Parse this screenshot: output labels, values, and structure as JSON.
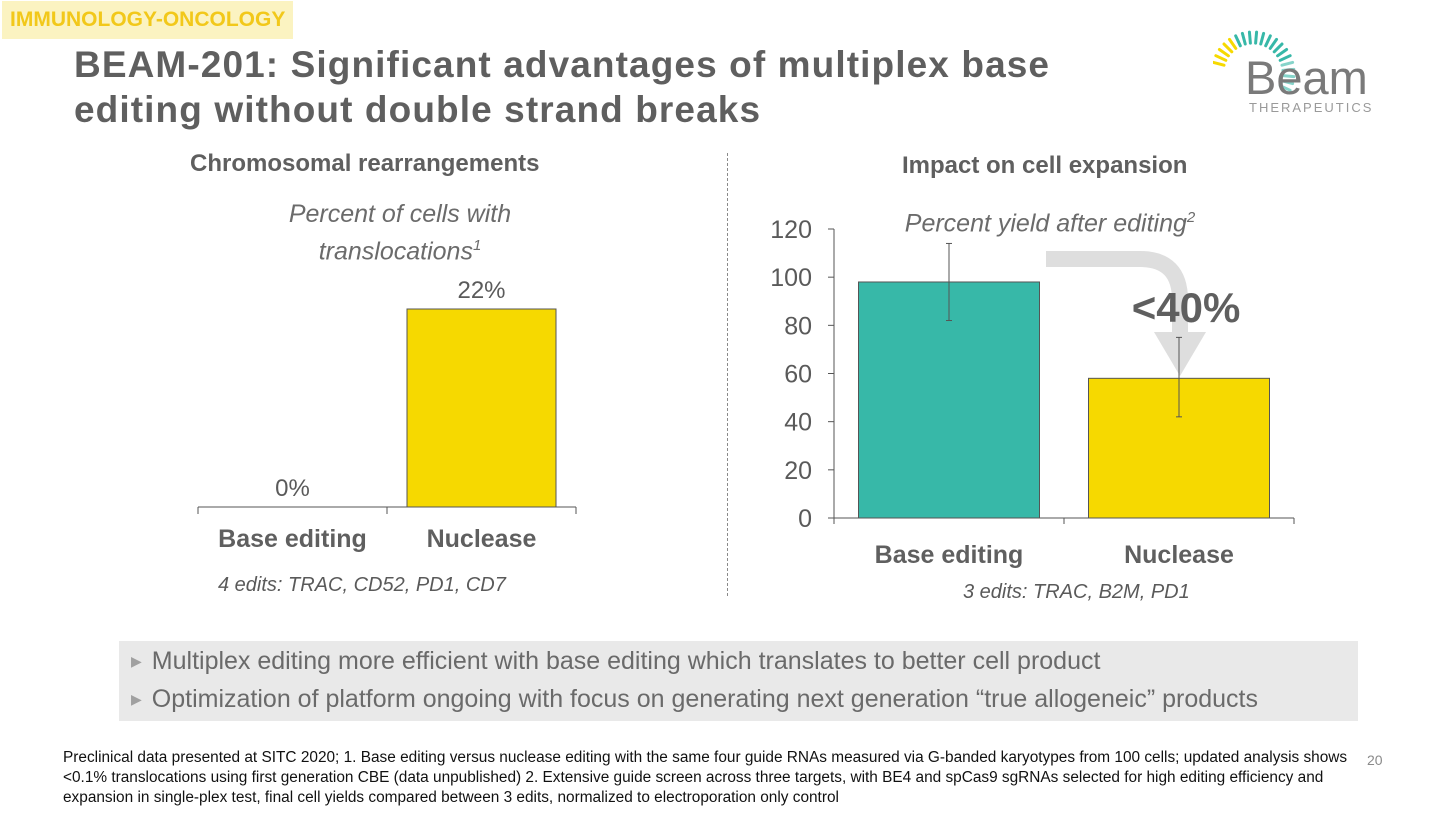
{
  "section_tag": "IMMUNOLOGY-ONCOLOGY",
  "title": "BEAM-201: Significant advantages of multiplex base editing without double strand breaks",
  "logo": {
    "name": "Beam",
    "tagline": "THERAPEUTICS",
    "colors": {
      "teal": "#37b8a8",
      "yellow": "#f6d900",
      "gray": "#7a7a7a"
    }
  },
  "colors": {
    "teal": "#37b8a8",
    "yellow": "#f6d900",
    "text": "#5f5f5f"
  },
  "left_panel": {
    "heading": "Chromosomal rearrangements",
    "subtitle_line1": "Percent of cells with",
    "subtitle_line2": "translocations",
    "subtitle_sup": "1",
    "edits_note": "4 edits: TRAC, CD52, PD1, CD7"
  },
  "right_panel": {
    "heading": "Impact on cell expansion",
    "subtitle": "Percent yield after editing",
    "subtitle_sup": "2",
    "edits_note": "3 edits: TRAC, B2M, PD1",
    "callout": "<40%"
  },
  "chart_data": [
    {
      "type": "bar",
      "title": "Percent of cells with translocations",
      "categories": [
        "Base editing",
        "Nuclease"
      ],
      "values": [
        0,
        22
      ],
      "data_labels": [
        "0%",
        "22%"
      ],
      "colors": [
        "#f6d900",
        "#f6d900"
      ],
      "ylim": [
        0,
        25
      ],
      "grid": false
    },
    {
      "type": "bar",
      "title": "Percent yield after editing",
      "categories": [
        "Base editing",
        "Nuclease"
      ],
      "values": [
        98,
        58
      ],
      "error_bars": [
        [
          82,
          114
        ],
        [
          42,
          75
        ]
      ],
      "colors": [
        "#37b8a8",
        "#f6d900"
      ],
      "ylim": [
        0,
        120
      ],
      "yticks": [
        0,
        20,
        40,
        60,
        80,
        100,
        120
      ],
      "grid": false,
      "annotation": "<40%"
    }
  ],
  "bullets": [
    "Multiplex editing more efficient with base editing which translates to better cell product",
    "Optimization of platform ongoing with focus on generating next generation “true allogeneic” products"
  ],
  "footnote": "Preclinical data presented at SITC 2020; 1. Base editing versus nuclease editing with the same four guide RNAs measured via G-banded karyotypes from 100 cells;  updated analysis shows <0.1% translocations using first generation CBE (data unpublished) 2. Extensive guide screen across three targets, with BE4 and spCas9 sgRNAs selected for high editing efficiency and expansion in single-plex test, final cell yields compared between 3 edits, normalized to electroporation only control",
  "page_number": "20"
}
